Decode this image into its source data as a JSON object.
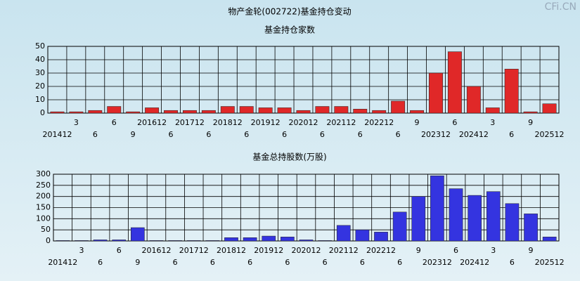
{
  "title": "物产金轮(002722)基金持仓变动",
  "watermark": "CFi.CN",
  "chart_data": [
    {
      "type": "bar",
      "title": "基金持仓家数",
      "categories": [
        "201412",
        "3",
        "6",
        "6",
        "9",
        "201612",
        "6",
        "201712",
        "6",
        "201812",
        "6",
        "201912",
        "6",
        "202012",
        "6",
        "202112",
        "6",
        "202212",
        "6",
        "9",
        "202312",
        "6",
        "202412",
        "3",
        "6",
        "9",
        "202512"
      ],
      "values": [
        1,
        1,
        2,
        5,
        1,
        4,
        2,
        2,
        2,
        5,
        5,
        4,
        4,
        2,
        5,
        5,
        3,
        2,
        9,
        2,
        30,
        46,
        20,
        4,
        33,
        1,
        7
      ],
      "color": "#e02828",
      "ylim": [
        0,
        50
      ],
      "yticks": [
        0,
        10,
        20,
        30,
        40,
        50
      ],
      "grid": true
    },
    {
      "type": "bar",
      "title": "基金总持股数(万股)",
      "categories": [
        "201412",
        "3",
        "6",
        "6",
        "9",
        "201612",
        "6",
        "201712",
        "6",
        "201812",
        "6",
        "201912",
        "6",
        "202012",
        "6",
        "202112",
        "6",
        "202212",
        "6",
        "9",
        "202312",
        "6",
        "202412",
        "3",
        "6",
        "9",
        "202512"
      ],
      "values": [
        2,
        2,
        5,
        5,
        60,
        2,
        2,
        2,
        2,
        15,
        15,
        22,
        18,
        5,
        2,
        70,
        50,
        40,
        130,
        200,
        293,
        235,
        205,
        222,
        168,
        122,
        18
      ],
      "color": "#3434e0",
      "ylim": [
        0,
        300
      ],
      "yticks": [
        0,
        50,
        100,
        150,
        200,
        250,
        300
      ],
      "grid": true
    }
  ]
}
